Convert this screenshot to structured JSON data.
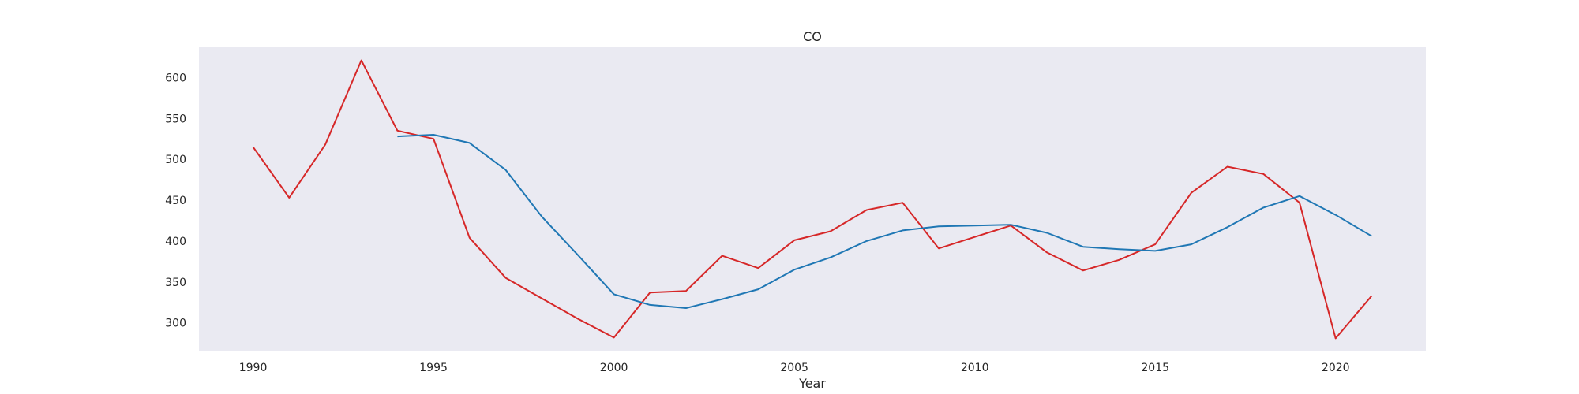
{
  "chart_data": {
    "type": "line",
    "title": "CO",
    "xlabel": "Year",
    "ylabel": "",
    "xlim": [
      1988.5,
      2022.5
    ],
    "ylim": [
      265,
      637
    ],
    "grid": false,
    "legend": "none",
    "background_color": "#eaeaf2",
    "x_ticks": [
      1990,
      1995,
      2000,
      2005,
      2010,
      2015,
      2020
    ],
    "y_ticks": [
      300,
      350,
      400,
      450,
      500,
      550,
      600
    ],
    "series": [
      {
        "color": "#d62728",
        "x": [
          1990,
          1991,
          1992,
          1993,
          1994,
          1995,
          1996,
          1997,
          1998,
          1999,
          2000,
          2001,
          2002,
          2003,
          2004,
          2005,
          2006,
          2007,
          2008,
          2009,
          2010,
          2011,
          2012,
          2013,
          2014,
          2015,
          2016,
          2017,
          2018,
          2019,
          2020,
          2021
        ],
        "values": [
          515,
          453,
          518,
          621,
          535,
          525,
          404,
          355,
          330,
          305,
          282,
          337,
          339,
          382,
          367,
          401,
          412,
          438,
          447,
          391,
          405,
          419,
          386,
          364,
          377,
          396,
          459,
          491,
          482,
          447,
          281,
          333
        ]
      },
      {
        "color": "#1f77b4",
        "x": [
          1994,
          1995,
          1996,
          1997,
          1998,
          1999,
          2000,
          2001,
          2002,
          2003,
          2004,
          2005,
          2006,
          2007,
          2008,
          2009,
          2010,
          2011,
          2012,
          2013,
          2014,
          2015,
          2016,
          2017,
          2018,
          2019,
          2020,
          2021
        ],
        "values": [
          528,
          530,
          520,
          487,
          430,
          383,
          335,
          322,
          318,
          329,
          341,
          365,
          380,
          400,
          413,
          418,
          419,
          420,
          410,
          393,
          390,
          388,
          396,
          417,
          441,
          455,
          432,
          406
        ]
      }
    ]
  }
}
